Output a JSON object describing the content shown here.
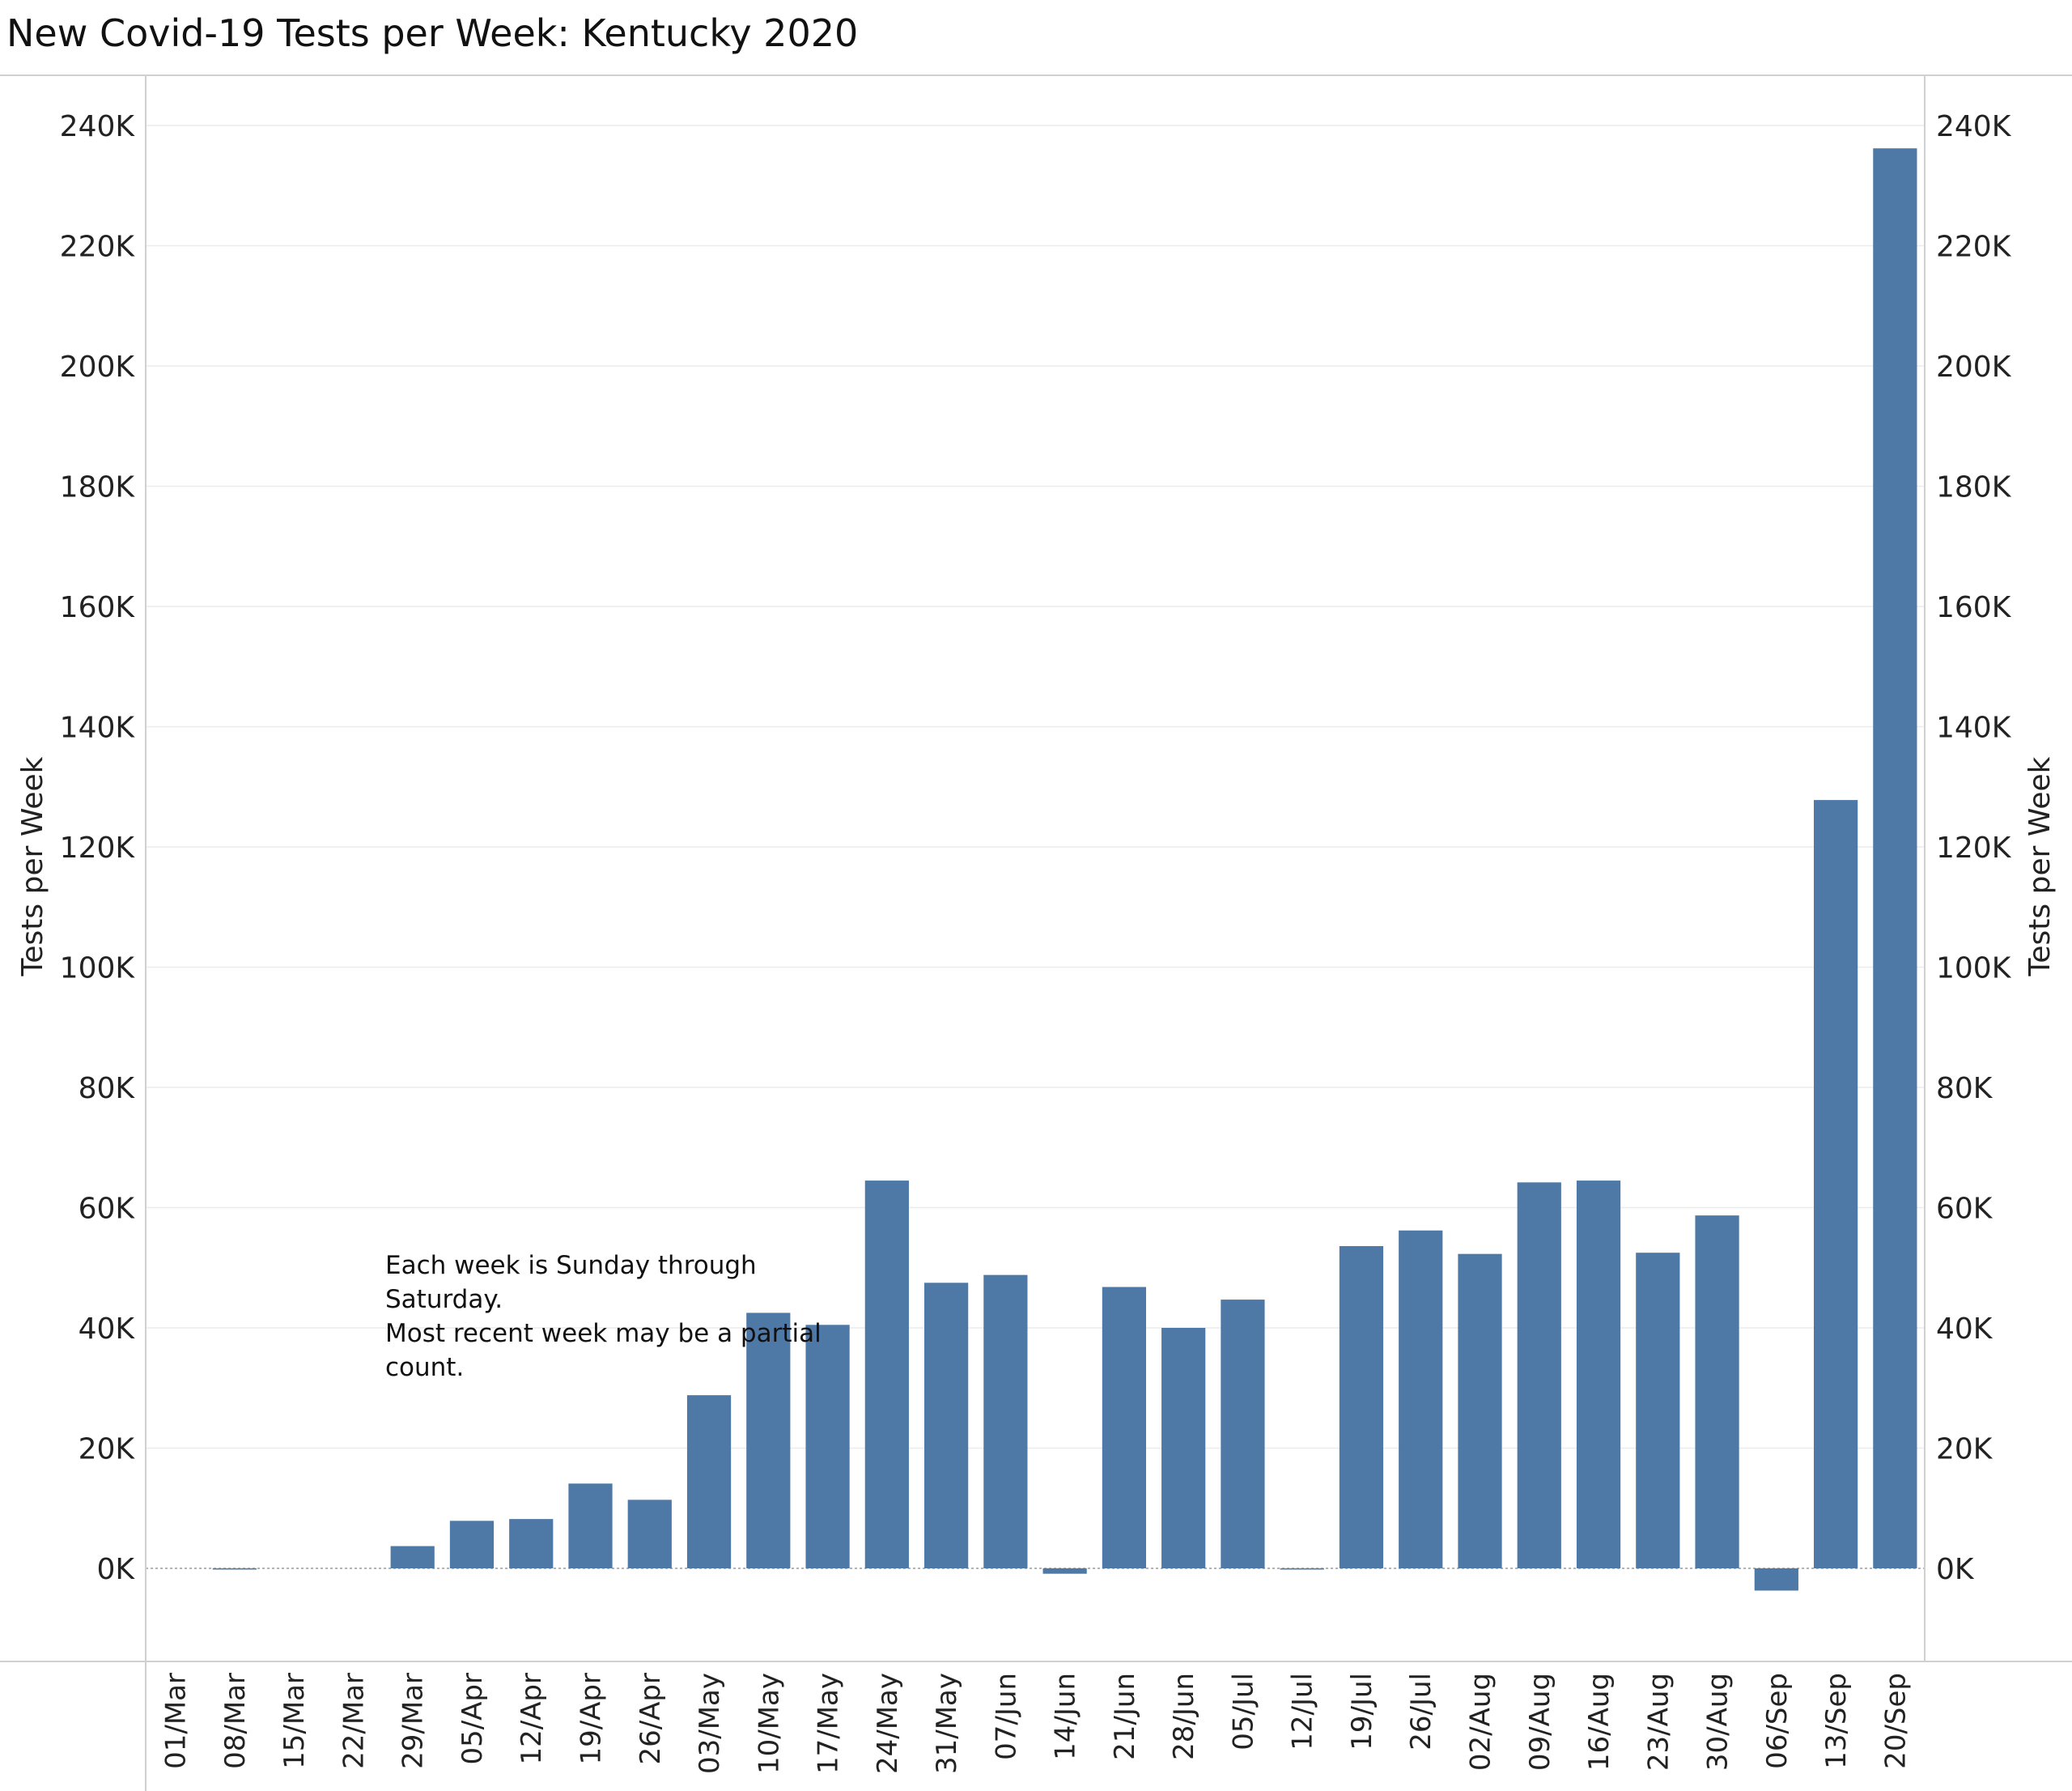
{
  "chart_data": {
    "type": "bar",
    "title": "New Covid-19 Tests per Week:  Kentucky 2020",
    "ylabel_left": "Tests per Week",
    "ylabel_right": "Tests per Week",
    "xlabel": "",
    "ylim": [
      -15000,
      250000
    ],
    "y_ticks": [
      0,
      20000,
      40000,
      60000,
      80000,
      100000,
      120000,
      140000,
      160000,
      180000,
      200000,
      220000,
      240000
    ],
    "y_tick_labels": [
      "0K",
      "20K",
      "40K",
      "60K",
      "80K",
      "100K",
      "120K",
      "140K",
      "160K",
      "180K",
      "200K",
      "220K",
      "240K"
    ],
    "categories": [
      "01/Mar",
      "08/Mar",
      "15/Mar",
      "22/Mar",
      "29/Mar",
      "05/Apr",
      "12/Apr",
      "19/Apr",
      "26/Apr",
      "03/May",
      "10/May",
      "17/May",
      "24/May",
      "31/May",
      "07/Jun",
      "14/Jun",
      "21/Jun",
      "28/Jun",
      "05/Jul",
      "12/Jul",
      "19/Jul",
      "26/Jul",
      "02/Aug",
      "09/Aug",
      "16/Aug",
      "23/Aug",
      "30/Aug",
      "06/Sep",
      "13/Sep",
      "20/Sep"
    ],
    "values": [
      0,
      -200,
      0,
      0,
      3700,
      7900,
      8200,
      14100,
      11400,
      28800,
      42500,
      40500,
      64500,
      47500,
      48800,
      -900,
      46800,
      40000,
      44700,
      -200,
      53600,
      56200,
      52300,
      64200,
      64500,
      52500,
      58700,
      -3700,
      127800,
      236200
    ],
    "gridlines": true,
    "bar_color": "#4e79a7",
    "annotation_lines": [
      "Each week is Sunday through",
      "Saturday.",
      "Most recent week may be a partial",
      "count."
    ]
  }
}
